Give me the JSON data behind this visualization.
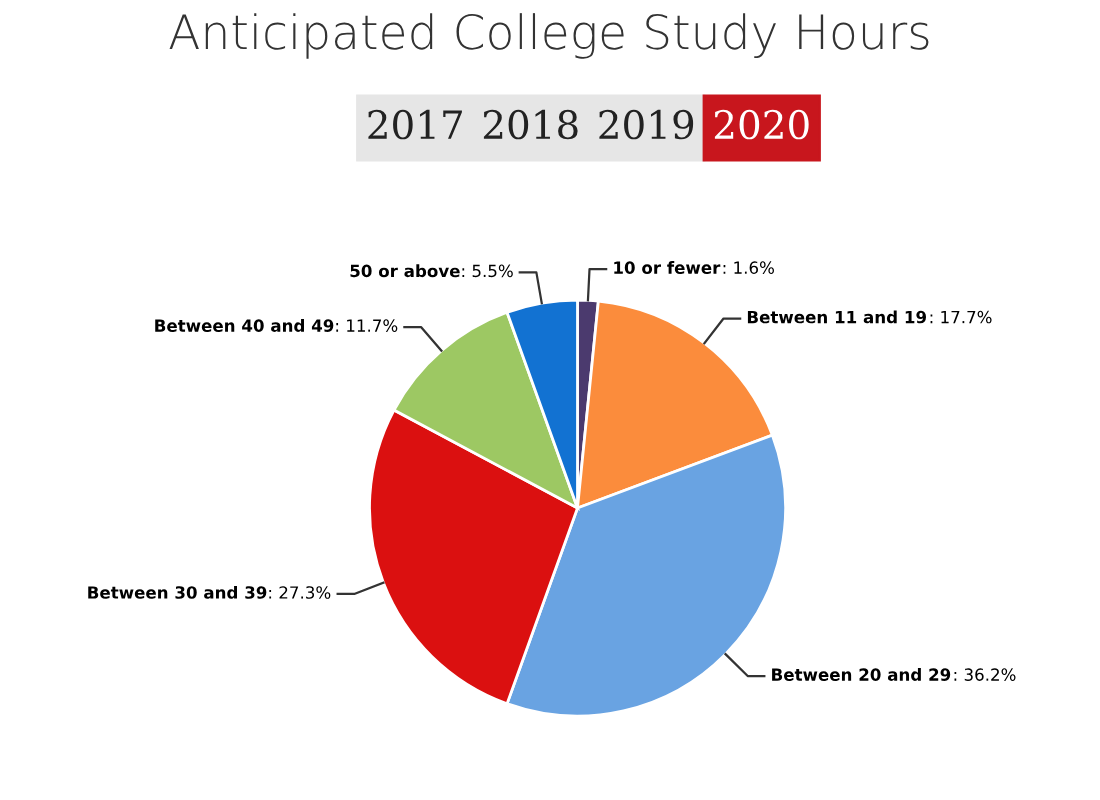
{
  "chart_data": {
    "type": "pie",
    "title": "Anticipated College Study Hours",
    "annotations": [
      "2017",
      "2018",
      "2019",
      "2020"
    ],
    "categories": [
      "10 or fewer",
      "Between 11 and 19",
      "Between 20 and 29",
      "Between 30 and 39",
      "Between 40 and 49",
      "50 or above"
    ],
    "values": [
      1.6,
      17.7,
      36.2,
      27.3,
      11.7,
      5.5
    ],
    "value_labels": [
      ": 1.6%",
      ": 17.7%",
      ": 36.2%",
      ": 27.3%",
      ": 11.7%",
      ": 5.5%"
    ],
    "colors": [
      "#4b3a6e",
      "#fb8c3c",
      "#69a3e2",
      "#db1010",
      "#9dc863",
      "#1272d2"
    ]
  }
}
